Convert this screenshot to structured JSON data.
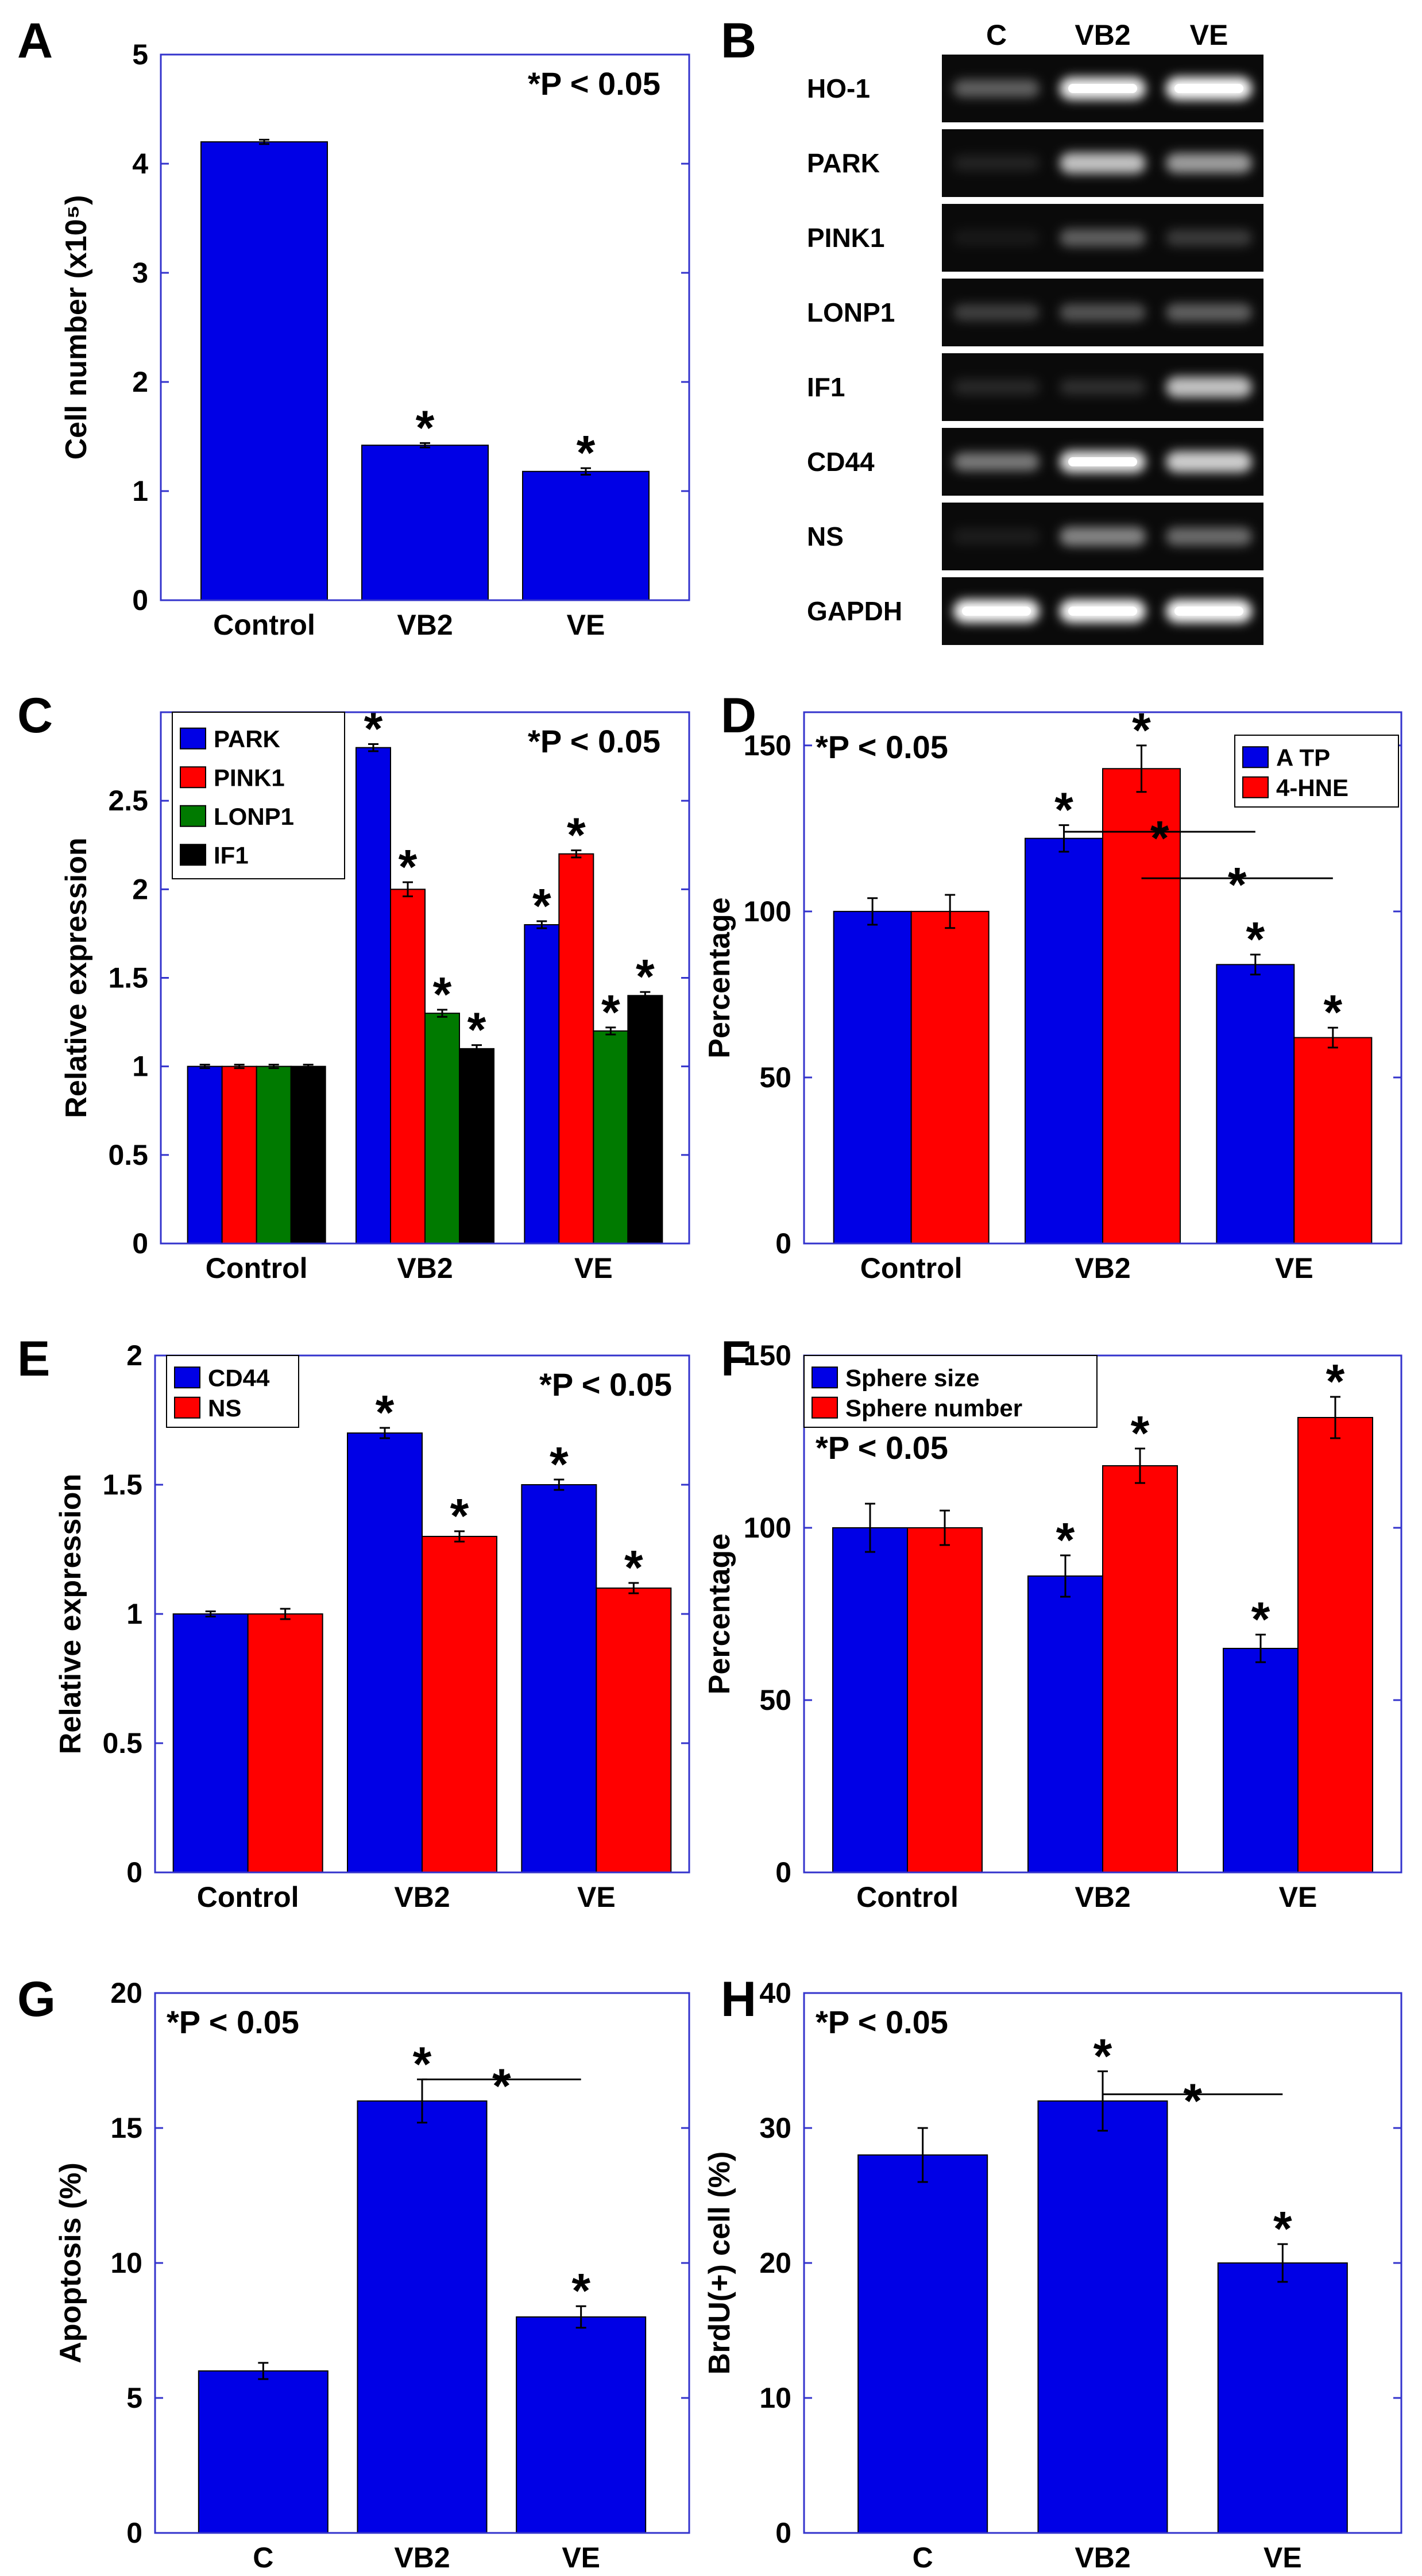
{
  "colors": {
    "blue": "#0000e6",
    "red": "#ff0000",
    "green": "#007a00",
    "black": "#000000",
    "frame": "#3333cc"
  },
  "panels": {
    "A": "A",
    "B": "B",
    "C": "C",
    "D": "D",
    "E": "E",
    "F": "F",
    "G": "G",
    "H": "H"
  },
  "chart_data": [
    {
      "id": "A",
      "type": "bar",
      "categories": [
        "Control",
        "VB2",
        "VE"
      ],
      "series": [
        {
          "name": "Cell number",
          "color": "blue",
          "values": [
            4.2,
            1.42,
            1.18
          ],
          "errors": [
            0.02,
            0.02,
            0.03
          ],
          "stars": [
            false,
            true,
            true
          ]
        }
      ],
      "ylabel": "Cell number (x10⁵)",
      "ylim": [
        0,
        5
      ],
      "yticks": [
        0,
        1,
        2,
        3,
        4,
        5
      ],
      "pvalue": "*P <  0.05",
      "pvalue_pos": "top-right",
      "legend": null,
      "brackets": []
    },
    {
      "id": "C",
      "type": "bar",
      "categories": [
        "Control",
        "VB2",
        "VE"
      ],
      "series": [
        {
          "name": "PARK",
          "color": "blue",
          "values": [
            1.0,
            2.8,
            1.8
          ],
          "errors": [
            0.01,
            0.02,
            0.02
          ],
          "stars": [
            false,
            true,
            true
          ]
        },
        {
          "name": "PINK1",
          "color": "red",
          "values": [
            1.0,
            2.0,
            2.2
          ],
          "errors": [
            0.01,
            0.04,
            0.02
          ],
          "stars": [
            false,
            true,
            true
          ]
        },
        {
          "name": "LONP1",
          "color": "green",
          "values": [
            1.0,
            1.3,
            1.2
          ],
          "errors": [
            0.01,
            0.02,
            0.02
          ],
          "stars": [
            false,
            true,
            true
          ]
        },
        {
          "name": "IF1",
          "color": "black",
          "values": [
            1.0,
            1.1,
            1.4
          ],
          "errors": [
            0.01,
            0.02,
            0.02
          ],
          "stars": [
            false,
            true,
            true
          ]
        }
      ],
      "ylabel": "Relative expression",
      "ylim": [
        0,
        3
      ],
      "yticks": [
        0,
        0.5,
        1,
        1.5,
        2,
        2.5
      ],
      "pvalue": "*P <  0.05",
      "pvalue_pos": "top-right",
      "legend": "top-left",
      "brackets": []
    },
    {
      "id": "D",
      "type": "bar",
      "categories": [
        "Control",
        "VB2",
        "VE"
      ],
      "series": [
        {
          "name": "A TP",
          "color": "blue",
          "values": [
            100,
            122,
            84
          ],
          "errors": [
            4,
            4,
            3
          ],
          "stars": [
            false,
            true,
            true
          ]
        },
        {
          "name": "4-HNE",
          "color": "red",
          "values": [
            100,
            143,
            62
          ],
          "errors": [
            5,
            7,
            3
          ],
          "stars": [
            false,
            true,
            true
          ]
        }
      ],
      "ylabel": "Percentage",
      "ylim": [
        0,
        160
      ],
      "yticks": [
        0,
        50,
        100,
        150
      ],
      "pvalue": "*P <  0.05",
      "pvalue_pos": "top-left",
      "legend": "top-right",
      "brackets": [
        {
          "from": [
            1,
            0
          ],
          "to": [
            2,
            0
          ],
          "y": 124,
          "label": "*"
        },
        {
          "from": [
            1,
            1
          ],
          "to": [
            2,
            1
          ],
          "y": 110,
          "label": "*"
        }
      ]
    },
    {
      "id": "E",
      "type": "bar",
      "categories": [
        "Control",
        "VB2",
        "VE"
      ],
      "series": [
        {
          "name": "CD44",
          "color": "blue",
          "values": [
            1.0,
            1.7,
            1.5
          ],
          "errors": [
            0.01,
            0.02,
            0.02
          ],
          "stars": [
            false,
            true,
            true
          ]
        },
        {
          "name": "NS",
          "color": "red",
          "values": [
            1.0,
            1.3,
            1.1
          ],
          "errors": [
            0.02,
            0.02,
            0.02
          ],
          "stars": [
            false,
            true,
            true
          ]
        }
      ],
      "ylabel": "Relative expression",
      "ylim": [
        0,
        2
      ],
      "yticks": [
        0,
        0.5,
        1,
        1.5,
        2
      ],
      "pvalue": "*P <  0.05",
      "pvalue_pos": "top-right",
      "legend": "top-left",
      "brackets": []
    },
    {
      "id": "F",
      "type": "bar",
      "categories": [
        "Control",
        "VB2",
        "VE"
      ],
      "series": [
        {
          "name": "Sphere size",
          "color": "blue",
          "values": [
            100,
            86,
            65
          ],
          "errors": [
            7,
            6,
            4
          ],
          "stars": [
            false,
            true,
            true
          ]
        },
        {
          "name": "Sphere number",
          "color": "red",
          "values": [
            100,
            118,
            132
          ],
          "errors": [
            5,
            5,
            6
          ],
          "stars": [
            false,
            true,
            true
          ]
        }
      ],
      "ylabel": "Percentage",
      "ylim": [
        0,
        150
      ],
      "yticks": [
        0,
        50,
        100,
        150
      ],
      "pvalue": "*P <  0.05",
      "pvalue_pos": "upper-left",
      "legend": "top-left",
      "brackets": []
    },
    {
      "id": "G",
      "type": "bar",
      "categories": [
        "C",
        "VB2",
        "VE"
      ],
      "series": [
        {
          "name": "Apoptosis",
          "color": "blue",
          "values": [
            6,
            16,
            8
          ],
          "errors": [
            0.3,
            0.8,
            0.4
          ],
          "stars": [
            false,
            true,
            true
          ]
        }
      ],
      "ylabel": "Apoptosis (%)",
      "ylim": [
        0,
        20
      ],
      "yticks": [
        0,
        5,
        10,
        15,
        20
      ],
      "pvalue": "*P <  0.05",
      "pvalue_pos": "top-left",
      "legend": null,
      "brackets": [
        {
          "from": [
            1,
            0
          ],
          "to": [
            2,
            0
          ],
          "y": 16.8,
          "label": "*"
        }
      ]
    },
    {
      "id": "H",
      "type": "bar",
      "categories": [
        "C",
        "VB2",
        "VE"
      ],
      "series": [
        {
          "name": "BrdU(+) cell",
          "color": "blue",
          "values": [
            28,
            32,
            20
          ],
          "errors": [
            2,
            2.2,
            1.4
          ],
          "stars": [
            false,
            true,
            true
          ]
        }
      ],
      "ylabel": "BrdU(+) cell (%)",
      "ylim": [
        0,
        40
      ],
      "yticks": [
        0,
        10,
        20,
        30,
        40
      ],
      "pvalue": "*P <  0.05",
      "pvalue_pos": "top-left",
      "legend": null,
      "brackets": [
        {
          "from": [
            1,
            0
          ],
          "to": [
            2,
            0
          ],
          "y": 32.5,
          "label": "*"
        }
      ]
    }
  ],
  "gel": {
    "columns": [
      "C",
      "VB2",
      "VE"
    ],
    "rows": [
      {
        "label": "HO-1",
        "intensity": [
          0.35,
          0.95,
          1.0
        ]
      },
      {
        "label": "PARK",
        "intensity": [
          0.1,
          0.75,
          0.6
        ]
      },
      {
        "label": "PINK1",
        "intensity": [
          0.06,
          0.35,
          0.2
        ]
      },
      {
        "label": "LONP1",
        "intensity": [
          0.22,
          0.3,
          0.35
        ]
      },
      {
        "label": "IF1",
        "intensity": [
          0.12,
          0.15,
          0.75
        ]
      },
      {
        "label": "CD44",
        "intensity": [
          0.45,
          0.9,
          0.8
        ]
      },
      {
        "label": "NS",
        "intensity": [
          0.08,
          0.5,
          0.4
        ]
      },
      {
        "label": "GAPDH",
        "intensity": [
          1.0,
          1.0,
          1.0
        ]
      }
    ]
  }
}
